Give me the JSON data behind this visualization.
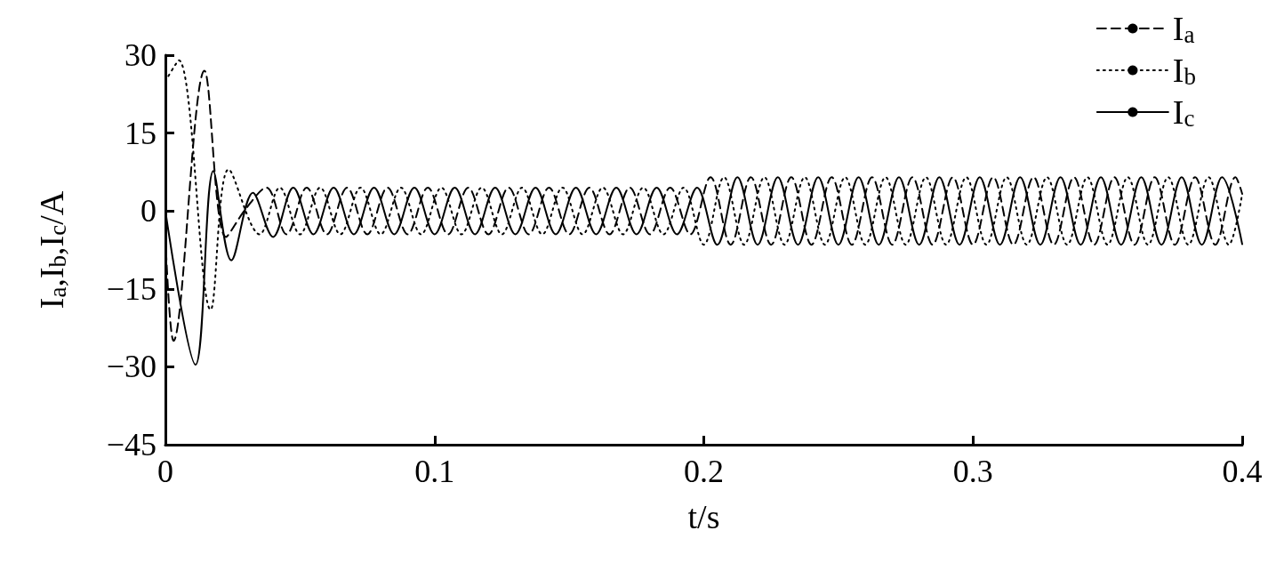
{
  "chart_data": {
    "type": "line",
    "xlabel": "t/s",
    "ylabel": "I$_{a}$,I$_{b}$,I$_{c}$/A",
    "xlim": [
      0,
      0.4
    ],
    "xticks": [
      0,
      0.1,
      0.2,
      0.3,
      0.4
    ],
    "ylim": [
      -45,
      30
    ],
    "yticks": [
      -45,
      -30,
      -15,
      0,
      15,
      30
    ],
    "grid": false,
    "legend": "top right",
    "marker": "none",
    "series": [
      {
        "name": "I$_{a}$",
        "color": "#000000",
        "line_style": "dashed",
        "x": [
          0,
          0.003,
          0.0145,
          0.0225,
          0.03,
          0.0375,
          0.045,
          0.0525,
          0.06,
          0.0675,
          0.075,
          0.0825,
          0.09,
          0.0975,
          0.105,
          0.1125,
          0.12,
          0.1275,
          0.135,
          0.1425,
          0.15,
          0.1575,
          0.165,
          0.1725,
          0.18,
          0.1875,
          0.195,
          0.2025,
          0.21,
          0.2175,
          0.225,
          0.2325,
          0.24,
          0.2475,
          0.255,
          0.2625,
          0.27,
          0.2775,
          0.285,
          0.2925,
          0.3,
          0.3075,
          0.315,
          0.3225,
          0.33,
          0.3375,
          0.345,
          0.3525,
          0.36,
          0.3675,
          0.375,
          0.3825,
          0.39,
          0.3975,
          0.4
        ],
        "values": [
          -5,
          -25,
          27,
          -5,
          0.5,
          4.5,
          -4.5,
          4.5,
          -4.5,
          4.5,
          -4.5,
          4.5,
          -4.5,
          4.5,
          -4.5,
          4.5,
          -4.5,
          4.5,
          -4.5,
          4.5,
          -4.5,
          4.5,
          -4.5,
          4.5,
          -4.5,
          4.5,
          -4.5,
          6.5,
          -6.5,
          6.5,
          -6.5,
          6.5,
          -6.5,
          6.5,
          -6.5,
          6.5,
          -6.5,
          6.5,
          -6.5,
          6.5,
          -6.5,
          6.5,
          -6.5,
          6.5,
          -6.5,
          6.5,
          -6.5,
          6.5,
          -6.5,
          6.5,
          -6.5,
          6.5,
          -6.5,
          6.5,
          3.3
        ]
      },
      {
        "name": "I$_{b}$",
        "color": "#000000",
        "line_style": "dotted",
        "x": [
          0,
          0.005,
          0.0168,
          0.0235,
          0.035,
          0.0425,
          0.05,
          0.0575,
          0.065,
          0.0725,
          0.08,
          0.0875,
          0.095,
          0.1025,
          0.11,
          0.1175,
          0.125,
          0.1325,
          0.14,
          0.1475,
          0.155,
          0.1625,
          0.17,
          0.1775,
          0.185,
          0.1925,
          0.2,
          0.2075,
          0.215,
          0.2225,
          0.23,
          0.2375,
          0.245,
          0.2525,
          0.26,
          0.2675,
          0.275,
          0.2825,
          0.29,
          0.2975,
          0.305,
          0.3125,
          0.32,
          0.3275,
          0.335,
          0.3425,
          0.35,
          0.3575,
          0.365,
          0.3725,
          0.38,
          0.3875,
          0.395,
          0.4
        ],
        "values": [
          25,
          29,
          -19,
          8,
          -4.5,
          4.5,
          -4.5,
          4.5,
          -4.5,
          4.5,
          -4.5,
          4.5,
          -4.5,
          4.5,
          -4.5,
          4.5,
          -4.5,
          4.5,
          -4.5,
          4.5,
          -4.5,
          4.5,
          -4.5,
          4.5,
          -4.5,
          4.5,
          -6.5,
          6.5,
          -6.5,
          6.5,
          -6.5,
          6.5,
          -6.5,
          6.5,
          -6.5,
          6.5,
          -6.5,
          6.5,
          -6.5,
          6.5,
          -6.5,
          6.5,
          -6.5,
          6.5,
          -6.5,
          6.5,
          -6.5,
          6.5,
          -6.5,
          6.5,
          -6.5,
          6.5,
          -6.5,
          3.3
        ]
      },
      {
        "name": "I$_{c}$",
        "color": "#000000",
        "line_style": "solid",
        "x": [
          0,
          0.0112,
          0.0178,
          0.0245,
          0.0325,
          0.04,
          0.0475,
          0.055,
          0.0625,
          0.07,
          0.0775,
          0.085,
          0.0925,
          0.1,
          0.1075,
          0.115,
          0.1225,
          0.13,
          0.1375,
          0.145,
          0.1525,
          0.16,
          0.1675,
          0.175,
          0.1825,
          0.19,
          0.1975,
          0.205,
          0.2125,
          0.22,
          0.2275,
          0.235,
          0.2425,
          0.25,
          0.2575,
          0.265,
          0.2725,
          0.28,
          0.2875,
          0.295,
          0.3025,
          0.31,
          0.3175,
          0.325,
          0.3325,
          0.34,
          0.3475,
          0.355,
          0.3625,
          0.37,
          0.3775,
          0.385,
          0.3925,
          0.4
        ],
        "values": [
          0,
          -29.6,
          7.7,
          -9.5,
          3.5,
          -5,
          4.5,
          -4.5,
          4.5,
          -4.5,
          4.5,
          -4.5,
          4.5,
          -4.5,
          4.5,
          -4.5,
          4.5,
          -4.5,
          4.5,
          -4.5,
          4.5,
          -4.5,
          4.5,
          -4.5,
          4.5,
          -4.5,
          4.5,
          -6.5,
          6.5,
          -6.5,
          6.5,
          -6.5,
          6.5,
          -6.5,
          6.5,
          -6.5,
          6.5,
          -6.5,
          6.5,
          -6.5,
          6.5,
          -6.5,
          6.5,
          -6.5,
          6.5,
          -6.5,
          6.5,
          -6.5,
          6.5,
          -6.5,
          6.5,
          -6.5,
          6.5,
          -6.4
        ]
      }
    ]
  }
}
